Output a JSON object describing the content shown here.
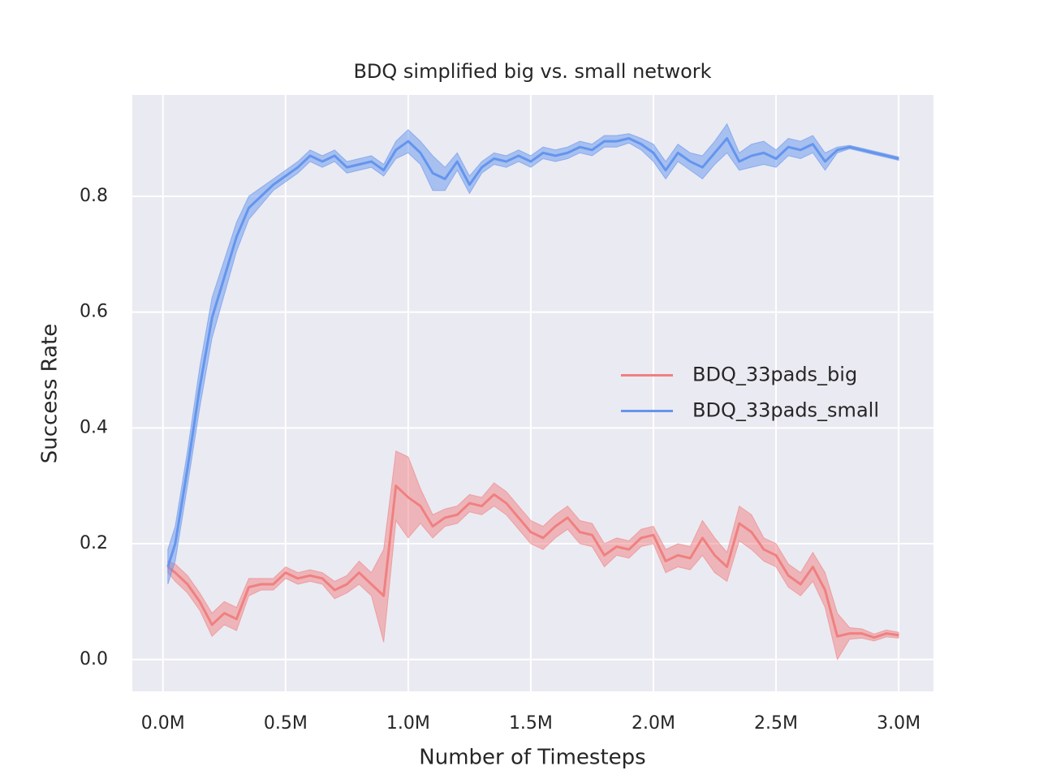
{
  "chart_data": {
    "type": "line",
    "title": "BDQ simplified big vs. small network",
    "x_label": "Number of Timesteps",
    "y_label": "Success Rate",
    "x": [
      20000,
      50000,
      100000,
      150000,
      200000,
      250000,
      300000,
      350000,
      400000,
      450000,
      500000,
      550000,
      600000,
      650000,
      700000,
      750000,
      800000,
      850000,
      900000,
      950000,
      1000000,
      1050000,
      1100000,
      1150000,
      1200000,
      1250000,
      1300000,
      1350000,
      1400000,
      1450000,
      1500000,
      1550000,
      1600000,
      1650000,
      1700000,
      1750000,
      1800000,
      1850000,
      1900000,
      1950000,
      2000000,
      2050000,
      2100000,
      2150000,
      2200000,
      2250000,
      2300000,
      2350000,
      2400000,
      2450000,
      2500000,
      2550000,
      2600000,
      2650000,
      2700000,
      2750000,
      2800000,
      2850000,
      2900000,
      2950000,
      3000000
    ],
    "series": [
      {
        "name": "BDQ_33pads_big",
        "color": "#f08080",
        "values": [
          0.16,
          0.15,
          0.13,
          0.1,
          0.06,
          0.08,
          0.07,
          0.125,
          0.13,
          0.13,
          0.15,
          0.14,
          0.145,
          0.14,
          0.12,
          0.13,
          0.15,
          0.13,
          0.11,
          0.3,
          0.28,
          0.265,
          0.23,
          0.245,
          0.25,
          0.27,
          0.265,
          0.285,
          0.27,
          0.245,
          0.22,
          0.21,
          0.23,
          0.245,
          0.22,
          0.215,
          0.18,
          0.195,
          0.19,
          0.21,
          0.215,
          0.17,
          0.18,
          0.175,
          0.21,
          0.18,
          0.16,
          0.235,
          0.22,
          0.19,
          0.18,
          0.145,
          0.13,
          0.16,
          0.12,
          0.04,
          0.045,
          0.045,
          0.038,
          0.045,
          0.042
        ],
        "errors": [
          0.01,
          0.015,
          0.015,
          0.015,
          0.02,
          0.02,
          0.02,
          0.015,
          0.01,
          0.01,
          0.01,
          0.01,
          0.01,
          0.01,
          0.015,
          0.015,
          0.02,
          0.02,
          0.08,
          0.06,
          0.07,
          0.03,
          0.02,
          0.015,
          0.015,
          0.015,
          0.015,
          0.02,
          0.02,
          0.02,
          0.02,
          0.02,
          0.02,
          0.02,
          0.02,
          0.02,
          0.02,
          0.015,
          0.015,
          0.015,
          0.015,
          0.02,
          0.02,
          0.02,
          0.03,
          0.03,
          0.025,
          0.03,
          0.03,
          0.02,
          0.02,
          0.02,
          0.02,
          0.025,
          0.03,
          0.04,
          0.01,
          0.008,
          0.006,
          0.006,
          0.005
        ]
      },
      {
        "name": "BDQ_33pads_small",
        "color": "#6495ed",
        "values": [
          0.16,
          0.2,
          0.33,
          0.47,
          0.59,
          0.66,
          0.73,
          0.78,
          0.8,
          0.82,
          0.835,
          0.85,
          0.87,
          0.86,
          0.87,
          0.85,
          0.855,
          0.86,
          0.845,
          0.88,
          0.895,
          0.875,
          0.84,
          0.83,
          0.86,
          0.82,
          0.85,
          0.865,
          0.86,
          0.87,
          0.86,
          0.875,
          0.87,
          0.875,
          0.885,
          0.88,
          0.895,
          0.895,
          0.9,
          0.89,
          0.875,
          0.845,
          0.875,
          0.86,
          0.85,
          0.875,
          0.9,
          0.86,
          0.87,
          0.875,
          0.865,
          0.885,
          0.88,
          0.89,
          0.86,
          0.88,
          0.885,
          0.88,
          0.875,
          0.87,
          0.865
        ],
        "errors": [
          0.03,
          0.03,
          0.03,
          0.035,
          0.035,
          0.03,
          0.025,
          0.02,
          0.015,
          0.01,
          0.01,
          0.01,
          0.01,
          0.01,
          0.01,
          0.01,
          0.01,
          0.01,
          0.01,
          0.015,
          0.02,
          0.02,
          0.03,
          0.02,
          0.015,
          0.015,
          0.01,
          0.01,
          0.01,
          0.01,
          0.01,
          0.01,
          0.01,
          0.01,
          0.01,
          0.01,
          0.01,
          0.01,
          0.008,
          0.01,
          0.015,
          0.015,
          0.015,
          0.015,
          0.02,
          0.02,
          0.025,
          0.015,
          0.02,
          0.02,
          0.015,
          0.015,
          0.015,
          0.015,
          0.015,
          0.005,
          0.003,
          0.003,
          0.003,
          0.003,
          0.003
        ]
      }
    ],
    "xlim": [
      -125000,
      3142000
    ],
    "ylim": [
      -0.055,
      0.975
    ],
    "xticks": [
      {
        "value": 0,
        "label": "0.0M"
      },
      {
        "value": 500000,
        "label": "0.5M"
      },
      {
        "value": 1000000,
        "label": "1.0M"
      },
      {
        "value": 1500000,
        "label": "1.5M"
      },
      {
        "value": 2000000,
        "label": "2.0M"
      },
      {
        "value": 2500000,
        "label": "2.5M"
      },
      {
        "value": 3000000,
        "label": "3.0M"
      }
    ],
    "yticks": [
      {
        "value": 0,
        "label": "0.0"
      },
      0.2,
      0.4,
      0.6,
      0.8
    ],
    "grid": true,
    "legend": "center right"
  }
}
